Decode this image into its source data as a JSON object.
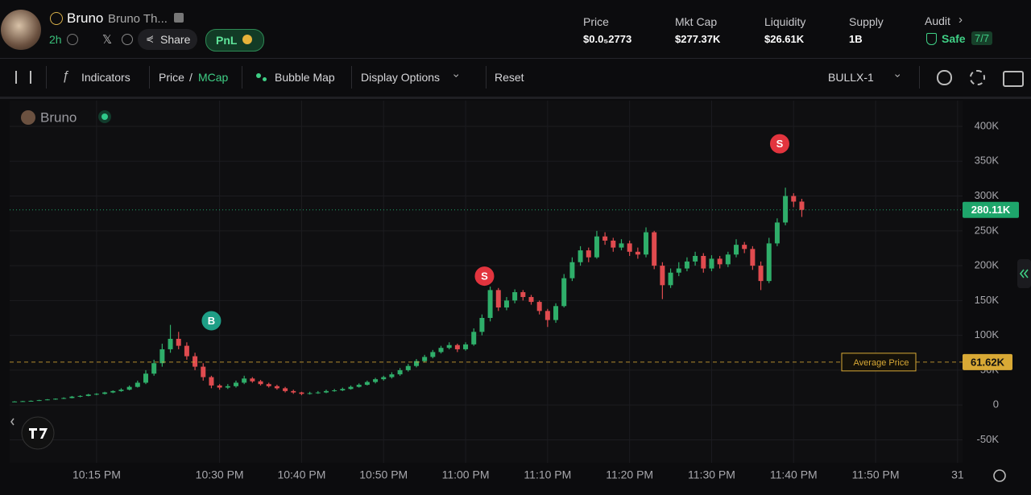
{
  "header": {
    "name": "Bruno",
    "full_name": "Bruno Th...",
    "age": "2h",
    "share": "Share",
    "pnl": "PnL",
    "stats": [
      {
        "label": "Price",
        "value": "$0.0₅2773"
      },
      {
        "label": "Mkt Cap",
        "value": "$277.37K"
      },
      {
        "label": "Liquidity",
        "value": "$26.61K"
      },
      {
        "label": "Supply",
        "value": "1B"
      }
    ],
    "audit": {
      "label": "Audit",
      "status": "Safe",
      "score": "7/7"
    }
  },
  "toolbar": {
    "indicators": "Indicators",
    "price": "Price",
    "separator": "/",
    "mcap": "MCap",
    "bubble_map": "Bubble Map",
    "display_options": "Display Options",
    "reset": "Reset",
    "pair": "BULLX-1"
  },
  "chart_data": {
    "type": "candlestick",
    "x": [
      1325,
      1326,
      1327,
      1328,
      1329,
      1330,
      1331,
      1332,
      1333,
      1334,
      1335,
      1336,
      1337,
      1338,
      1339,
      1340,
      1341,
      1342,
      1343,
      1344,
      1345,
      1346,
      1347,
      1348,
      1349,
      1350,
      1351,
      1352,
      1353,
      1354,
      1355,
      1356,
      1357,
      1358,
      1359,
      1360,
      1361,
      1362,
      1363,
      1364,
      1365,
      1366,
      1367,
      1368,
      1369,
      1370,
      1371,
      1372,
      1373,
      1374,
      1375,
      1376,
      1377,
      1378,
      1379,
      1380,
      1381,
      1382,
      1383,
      1384,
      1385,
      1386,
      1387,
      1388,
      1389,
      1390,
      1391,
      1392,
      1393,
      1394,
      1395,
      1396,
      1397,
      1398,
      1399,
      1400,
      1401,
      1402,
      1403,
      1404,
      1405,
      1406,
      1407,
      1408,
      1409,
      1410,
      1411,
      1412,
      1413,
      1414,
      1415,
      1416,
      1417,
      1418,
      1419,
      1420,
      1421
    ],
    "series": [
      {
        "name": "Bruno",
        "up_color": "#2fae6a",
        "down_color": "#e04b4f",
        "ohlc": [
          [
            4.8,
            5.5,
            4.5,
            5
          ],
          [
            5,
            6,
            4.8,
            5.5
          ],
          [
            5.5,
            6.5,
            5.2,
            6
          ],
          [
            6,
            7.5,
            5.8,
            7
          ],
          [
            7,
            8.5,
            6.8,
            8
          ],
          [
            8,
            9.5,
            7.5,
            9
          ],
          [
            9,
            11,
            8.5,
            10
          ],
          [
            10,
            13,
            9.5,
            12
          ],
          [
            12,
            14,
            11,
            13
          ],
          [
            13,
            16,
            12.5,
            15
          ],
          [
            15,
            17,
            14,
            16
          ],
          [
            16,
            19,
            15,
            18
          ],
          [
            18,
            21,
            17,
            20
          ],
          [
            20,
            24,
            19,
            22
          ],
          [
            22,
            28,
            21,
            26
          ],
          [
            26,
            35,
            25,
            32
          ],
          [
            32,
            50,
            30,
            45
          ],
          [
            45,
            65,
            42,
            60
          ],
          [
            60,
            88,
            55,
            80
          ],
          [
            80,
            115,
            75,
            95
          ],
          [
            95,
            105,
            80,
            85
          ],
          [
            85,
            90,
            65,
            70
          ],
          [
            70,
            75,
            50,
            55
          ],
          [
            55,
            60,
            35,
            40
          ],
          [
            40,
            42,
            24,
            28
          ],
          [
            28,
            30,
            22,
            25
          ],
          [
            25,
            30,
            23,
            27
          ],
          [
            27,
            35,
            25,
            32
          ],
          [
            32,
            42,
            30,
            38
          ],
          [
            38,
            40,
            32,
            34
          ],
          [
            34,
            36,
            28,
            30
          ],
          [
            30,
            32,
            25,
            27
          ],
          [
            27,
            29,
            22,
            24
          ],
          [
            24,
            26,
            18,
            20
          ],
          [
            20,
            22,
            16,
            18
          ],
          [
            18,
            19,
            14,
            16
          ],
          [
            16,
            19,
            15,
            17
          ],
          [
            17,
            20,
            16,
            18
          ],
          [
            18,
            22,
            17,
            20
          ],
          [
            20,
            23,
            19,
            21
          ],
          [
            21,
            25,
            20,
            23
          ],
          [
            23,
            28,
            22,
            26
          ],
          [
            26,
            31,
            25,
            29
          ],
          [
            29,
            35,
            28,
            33
          ],
          [
            33,
            39,
            31,
            37
          ],
          [
            37,
            42,
            35,
            40
          ],
          [
            40,
            47,
            38,
            44
          ],
          [
            44,
            53,
            42,
            50
          ],
          [
            50,
            59,
            48,
            56
          ],
          [
            56,
            66,
            54,
            63
          ],
          [
            63,
            72,
            61,
            69
          ],
          [
            69,
            79,
            67,
            76
          ],
          [
            76,
            85,
            74,
            82
          ],
          [
            82,
            90,
            80,
            86
          ],
          [
            86,
            88,
            76,
            80
          ],
          [
            80,
            90,
            78,
            87
          ],
          [
            87,
            110,
            85,
            105
          ],
          [
            105,
            130,
            100,
            125
          ],
          [
            125,
            170,
            120,
            165
          ],
          [
            165,
            168,
            135,
            140
          ],
          [
            140,
            155,
            136,
            150
          ],
          [
            150,
            166,
            146,
            162
          ],
          [
            162,
            165,
            150,
            155
          ],
          [
            155,
            158,
            144,
            148
          ],
          [
            148,
            150,
            130,
            135
          ],
          [
            135,
            138,
            112,
            122
          ],
          [
            122,
            146,
            118,
            142
          ],
          [
            142,
            188,
            140,
            182
          ],
          [
            182,
            212,
            178,
            205
          ],
          [
            205,
            228,
            200,
            222
          ],
          [
            222,
            226,
            205,
            212
          ],
          [
            212,
            250,
            210,
            242
          ],
          [
            242,
            248,
            230,
            236
          ],
          [
            236,
            240,
            220,
            226
          ],
          [
            226,
            238,
            222,
            232
          ],
          [
            232,
            236,
            214,
            220
          ],
          [
            220,
            226,
            210,
            216
          ],
          [
            216,
            255,
            212,
            248
          ],
          [
            248,
            250,
            195,
            200
          ],
          [
            200,
            205,
            152,
            172
          ],
          [
            172,
            196,
            168,
            190
          ],
          [
            190,
            205,
            185,
            196
          ],
          [
            196,
            212,
            192,
            206
          ],
          [
            206,
            220,
            200,
            214
          ],
          [
            214,
            218,
            190,
            196
          ],
          [
            196,
            215,
            192,
            210
          ],
          [
            210,
            214,
            196,
            202
          ],
          [
            202,
            220,
            198,
            216
          ],
          [
            216,
            238,
            212,
            230
          ],
          [
            230,
            234,
            218,
            224
          ],
          [
            224,
            228,
            194,
            200
          ],
          [
            200,
            206,
            165,
            178
          ],
          [
            178,
            240,
            175,
            232
          ],
          [
            232,
            268,
            228,
            262
          ],
          [
            262,
            312,
            258,
            300
          ],
          [
            300,
            304,
            284,
            292
          ],
          [
            292,
            296,
            270,
            280.11
          ]
        ]
      }
    ],
    "xlim": [
      1324.4,
      1440.6
    ],
    "xticks": [
      {
        "value": 1335,
        "label": "10:15 PM"
      },
      {
        "value": 1350,
        "label": "10:30 PM"
      },
      {
        "value": 1360,
        "label": "10:40 PM"
      },
      {
        "value": 1370,
        "label": "10:50 PM"
      },
      {
        "value": 1380,
        "label": "11:00 PM"
      },
      {
        "value": 1390,
        "label": "11:10 PM"
      },
      {
        "value": 1400,
        "label": "11:20 PM"
      },
      {
        "value": 1410,
        "label": "11:30 PM"
      },
      {
        "value": 1420,
        "label": "11:40 PM"
      },
      {
        "value": 1430,
        "label": "11:50 PM"
      },
      {
        "value": 1440,
        "label": "31"
      }
    ],
    "ylim": [
      -83,
      437
    ],
    "yticks": [
      {
        "value": 400,
        "label": "400K"
      },
      {
        "value": 350,
        "label": "350K"
      },
      {
        "value": 300,
        "label": "300K"
      },
      {
        "value": 250,
        "label": "250K"
      },
      {
        "value": 200,
        "label": "200K"
      },
      {
        "value": 150,
        "label": "150K"
      },
      {
        "value": 100,
        "label": "100K"
      },
      {
        "value": 50,
        "label": "50K"
      },
      0,
      {
        "value": -50,
        "label": "-50K"
      }
    ],
    "grid": true,
    "last_price": {
      "value": 280.11,
      "label": "280.11K",
      "color": "#1ea56b"
    },
    "average_price": {
      "name": "Average Price",
      "value": 61.62,
      "label": "61.62K",
      "color": "#d9a935"
    },
    "markers": [
      {
        "label": "B",
        "x": 1349,
        "y": 121,
        "color": "#1e9e86"
      },
      {
        "label": "S",
        "x": 1382.3,
        "y": 185,
        "color": "#e2343e"
      },
      {
        "label": "S",
        "x": 1418.3,
        "y": 375,
        "color": "#e2343e"
      }
    ]
  }
}
